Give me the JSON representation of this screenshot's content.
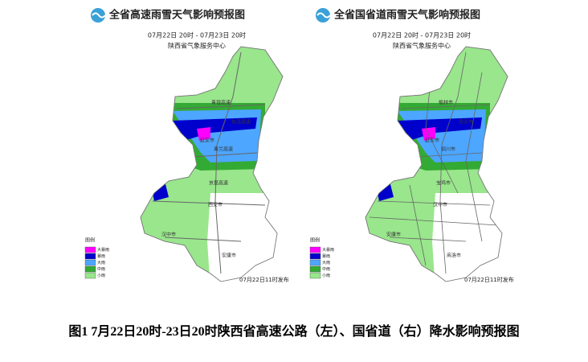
{
  "maps": [
    {
      "title": "全省高速雨雪天气影响预报图",
      "time": "07月22日 20时 - 07月23日 20时",
      "agency": "陕西省气象服务中心",
      "legend": {
        "title": "图例",
        "items": [
          {
            "label": "大暴雨",
            "color": "#ff00ff"
          },
          {
            "label": "暴雨",
            "color": "#0000cc"
          },
          {
            "label": "大雨",
            "color": "#4da6ff"
          },
          {
            "label": "中雨",
            "color": "#33aa33"
          },
          {
            "label": "小雨",
            "color": "#99e68c"
          }
        ]
      },
      "issued": "07月22日11时发布",
      "labels": [
        "青银高速",
        "延安市",
        "青兰高速",
        "包茂高速",
        "西安市",
        "汉中市",
        "安康市",
        "京昆高速"
      ]
    },
    {
      "title": "全省国省道雨雪天气影响预报图",
      "time": "07月22日 20时 - 07月23日 20时",
      "agency": "陕西省气象服务中心",
      "legend": {
        "title": "图例",
        "items": [
          {
            "label": "大暴雨",
            "color": "#ff00ff"
          },
          {
            "label": "暴雨",
            "color": "#0000cc"
          },
          {
            "label": "大雨",
            "color": "#4da6ff"
          },
          {
            "label": "中雨",
            "color": "#33aa33"
          },
          {
            "label": "小雨",
            "color": "#99e68c"
          }
        ]
      },
      "issued": "07月22日11时发布",
      "labels": [
        "榆林市",
        "延安市",
        "铜川市",
        "西安市",
        "汉中市",
        "安康市",
        "商洛市",
        "宝鸡市"
      ]
    }
  ],
  "caption": {
    "line1": "图1 7月22日20时-23日20时陕西省高速公路（左）、国省道（右）降水影响预报图",
    "line2": ""
  }
}
